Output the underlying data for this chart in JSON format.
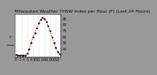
{
  "title": "Milwaukee Weather THSW Index per Hour (F) (Last 24 Hours)",
  "hours": [
    0,
    1,
    2,
    3,
    4,
    5,
    6,
    7,
    8,
    9,
    10,
    11,
    12,
    13,
    14,
    15,
    16,
    17,
    18,
    19,
    20,
    21,
    22,
    23
  ],
  "values": [
    36,
    35,
    35,
    35,
    35,
    35,
    38,
    45,
    55,
    65,
    72,
    80,
    87,
    93,
    97,
    95,
    90,
    83,
    75,
    65,
    55,
    47,
    40,
    37
  ],
  "line_color": "#ff0000",
  "marker_color": "#000000",
  "background_color": "#ffffff",
  "title_color": "#000000",
  "grid_color": "#999999",
  "ylim": [
    32,
    102
  ],
  "yticks": [
    45,
    55,
    65,
    75,
    85,
    95
  ],
  "title_fontsize": 4.5,
  "tick_fontsize": 3.5,
  "fig_bg": "#999999",
  "left_bar_color": "#444444",
  "vgrid_hours": [
    0,
    3,
    6,
    9,
    12,
    15,
    18,
    21,
    23
  ]
}
